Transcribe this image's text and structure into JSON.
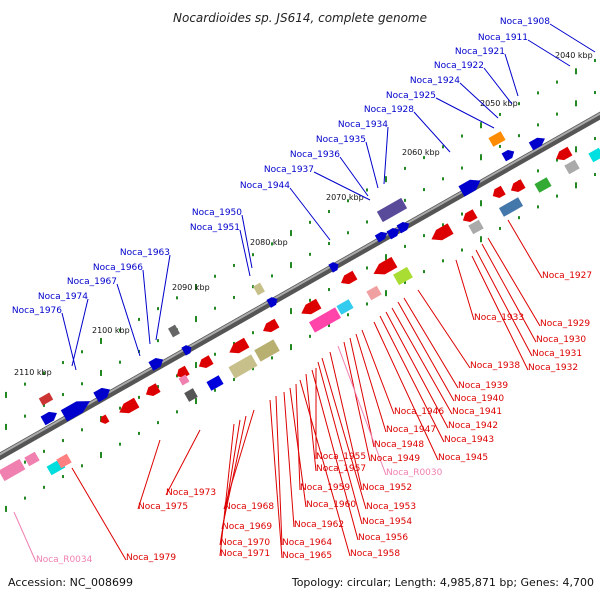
{
  "title": "Nocardioides sp. JS614, complete genome",
  "footer": {
    "accession": "Accession: NC_008699",
    "info": "Topology: circular; Length: 4,985,871 bp; Genes: 4,700"
  },
  "colors": {
    "forward": "#0000cc",
    "reverse": "#dd0000",
    "rna": "#f080b0",
    "backbone": "#808080",
    "tick": "#228822"
  },
  "kbp_labels": [
    "2040 kbp",
    "2050 kbp",
    "2060 kbp",
    "2070 kbp",
    "2080 kbp",
    "2090 kbp",
    "2100 kbp",
    "2110 kbp"
  ],
  "forward_genes": [
    "Noca_1908",
    "Noca_1911",
    "Noca_1921",
    "Noca_1922",
    "Noca_1924",
    "Noca_1925",
    "Noca_1928",
    "Noca_1934",
    "Noca_1935",
    "Noca_1936",
    "Noca_1937",
    "Noca_1944",
    "Noca_1950",
    "Noca_1951",
    "Noca_1963",
    "Noca_1966",
    "Noca_1967",
    "Noca_1974",
    "Noca_1976"
  ],
  "reverse_genes": [
    "Noca_1927",
    "Noca_1929",
    "Noca_1930",
    "Noca_1931",
    "Noca_1932",
    "Noca_1933",
    "Noca_1938",
    "Noca_1939",
    "Noca_1940",
    "Noca_1941",
    "Noca_1942",
    "Noca_1943",
    "Noca_1945",
    "Noca_1946",
    "Noca_1947",
    "Noca_1948",
    "Noca_1949",
    "Noca_R0030",
    "Noca_1952",
    "Noca_1953",
    "Noca_1954",
    "Noca_1955",
    "Noca_1956",
    "Noca_1957",
    "Noca_1958",
    "Noca_1959",
    "Noca_1960",
    "Noca_1962",
    "Noca_1964",
    "Noca_1965",
    "Noca_1968",
    "Noca_1969",
    "Noca_1970",
    "Noca_1971",
    "Noca_1973",
    "Noca_1975",
    "Noca_1979",
    "Noca_R0034"
  ]
}
